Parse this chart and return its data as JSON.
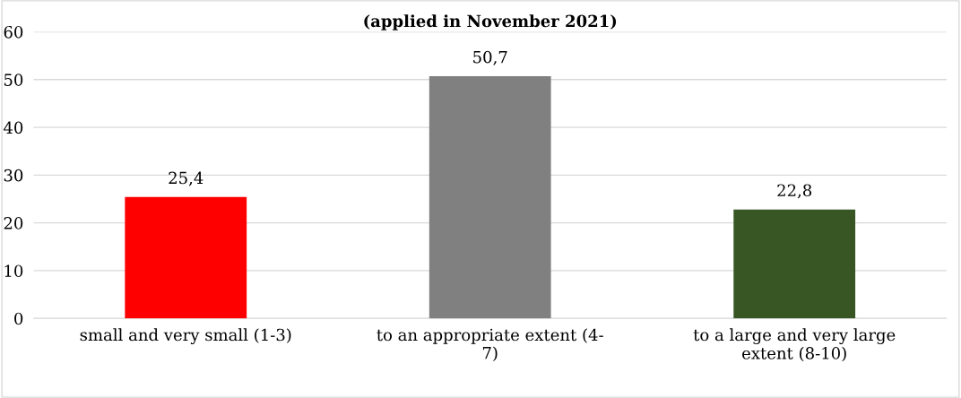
{
  "chart_data": {
    "type": "bar",
    "title": "(applied in November 2021)",
    "categories": [
      "small and very small (1-3)",
      "to an appropriate extent (4-\n7)",
      "to a large and very large\nextent (8-10)"
    ],
    "values": [
      25.4,
      50.7,
      22.8
    ],
    "colors": [
      "#ff0000",
      "#808080",
      "#375623"
    ],
    "value_labels": [
      "25,4",
      "50,7",
      "22,8"
    ],
    "ylim": [
      0,
      60
    ],
    "yticks": [
      0,
      10,
      20,
      30,
      40,
      50,
      60
    ],
    "grid": "y",
    "legend": false
  }
}
